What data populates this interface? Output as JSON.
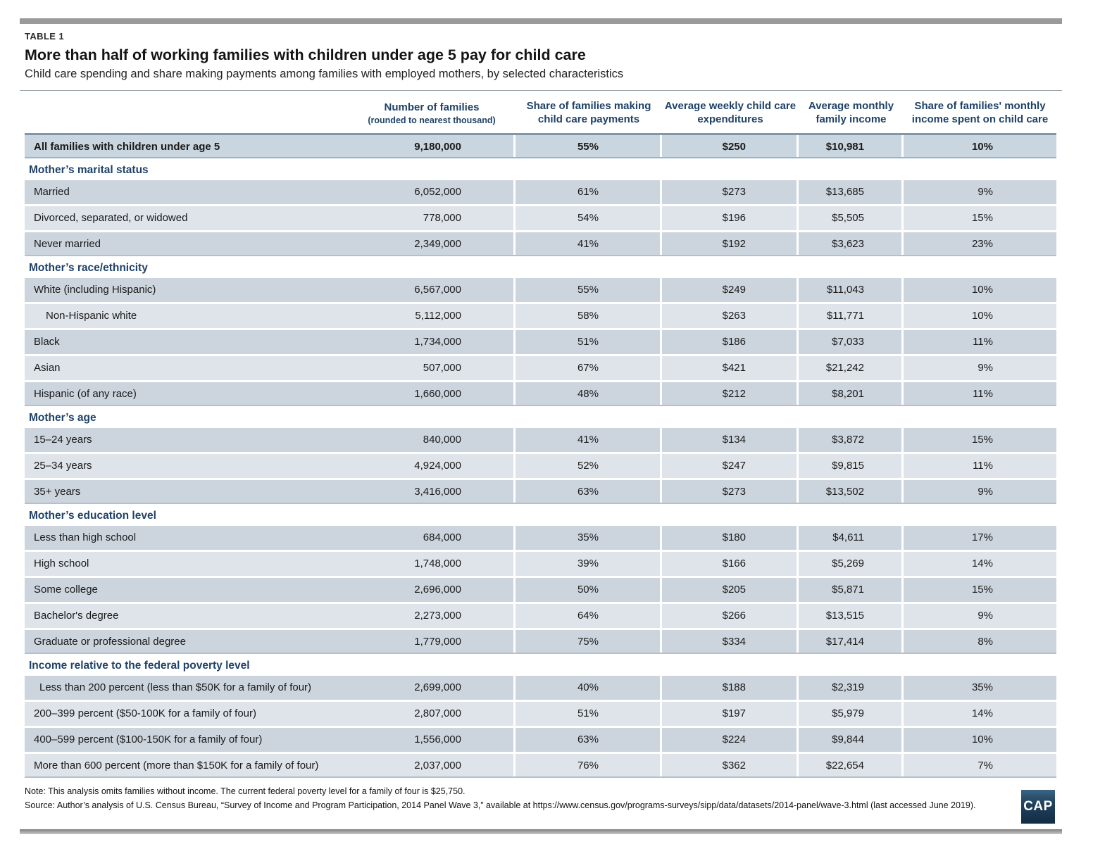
{
  "page": {
    "table_label": "TABLE 1",
    "title": "More than half of working families with children under age 5 pay for child care",
    "subtitle": "Child care spending and share making payments among families with employed mothers, by selected characteristics",
    "note": "Note: This analysis omits families without income. The current federal poverty level for a family of four is $25,750.",
    "source": "Source: Author’s analysis of U.S. Census Bureau, “Survey of Income and Program Participation, 2014 Panel Wave 3,” available at https://www.census.gov/programs-surveys/sipp/data/datasets/2014-panel/wave-3.html (last accessed June 2019).",
    "logo_text": "CAP"
  },
  "colors": {
    "navy": "#1f4267",
    "row_dark": "#ccd5de",
    "row_light": "#dee4ea",
    "all_row_bg": "#c9d5df",
    "section_border": "#b5c0ca",
    "bar_gray": "#9a9a9a"
  },
  "table": {
    "columns": [
      {
        "label": "Number of families",
        "subline": "(rounded to nearest thousand)"
      },
      {
        "label": "Share of families making child care payments"
      },
      {
        "label": "Average weekly child care expenditures"
      },
      {
        "label": "Average monthly family income"
      },
      {
        "label": "Share of families' monthly income spent on child care"
      }
    ],
    "all_row": {
      "label": "All families with children under age 5",
      "values": [
        "9,180,000",
        "55%",
        "$250",
        "$10,981",
        "10%"
      ]
    },
    "sections": [
      {
        "header": "Mother’s marital status",
        "rows": [
          {
            "label": "Married",
            "values": [
              "6,052,000",
              "61%",
              "$273",
              "$13,685",
              "9%"
            ]
          },
          {
            "label": "Divorced, separated, or widowed",
            "values": [
              "778,000",
              "54%",
              "$196",
              "$5,505",
              "15%"
            ]
          },
          {
            "label": "Never married",
            "values": [
              "2,349,000",
              "41%",
              "$192",
              "$3,623",
              "23%"
            ]
          }
        ]
      },
      {
        "header": "Mother’s race/ethnicity",
        "rows": [
          {
            "label": "White (including Hispanic)",
            "values": [
              "6,567,000",
              "55%",
              "$249",
              "$11,043",
              "10%"
            ]
          },
          {
            "label": "Non-Hispanic white",
            "indent": 2,
            "values": [
              "5,112,000",
              "58%",
              "$263",
              "$11,771",
              "10%"
            ]
          },
          {
            "label": "Black",
            "values": [
              "1,734,000",
              "51%",
              "$186",
              "$7,033",
              "11%"
            ]
          },
          {
            "label": "Asian",
            "values": [
              "507,000",
              "67%",
              "$421",
              "$21,242",
              "9%"
            ]
          },
          {
            "label": "Hispanic (of any race)",
            "values": [
              "1,660,000",
              "48%",
              "$212",
              "$8,201",
              "11%"
            ]
          }
        ]
      },
      {
        "header": "Mother’s age",
        "rows": [
          {
            "label": "15–24 years",
            "values": [
              "840,000",
              "41%",
              "$134",
              "$3,872",
              "15%"
            ]
          },
          {
            "label": "25–34 years",
            "values": [
              "4,924,000",
              "52%",
              "$247",
              "$9,815",
              "11%"
            ]
          },
          {
            "label": "35+ years",
            "values": [
              "3,416,000",
              "63%",
              "$273",
              "$13,502",
              "9%"
            ]
          }
        ]
      },
      {
        "header": "Mother’s education level",
        "rows": [
          {
            "label": "Less than high school",
            "values": [
              "684,000",
              "35%",
              "$180",
              "$4,611",
              "17%"
            ]
          },
          {
            "label": "High school",
            "values": [
              "1,748,000",
              "39%",
              "$166",
              "$5,269",
              "14%"
            ]
          },
          {
            "label": "Some college",
            "values": [
              "2,696,000",
              "50%",
              "$205",
              "$5,871",
              "15%"
            ]
          },
          {
            "label": "Bachelor's degree",
            "values": [
              "2,273,000",
              "64%",
              "$266",
              "$13,515",
              "9%"
            ]
          },
          {
            "label": "Graduate or professional degree",
            "values": [
              "1,779,000",
              "75%",
              "$334",
              "$17,414",
              "8%"
            ]
          }
        ]
      },
      {
        "header": "Income relative to the federal poverty level",
        "rows": [
          {
            "label": "Less than 200 percent (less than $50K for a family of four)",
            "indent": 1,
            "values": [
              "2,699,000",
              "40%",
              "$188",
              "$2,319",
              "35%"
            ]
          },
          {
            "label": "200–399 percent ($50-100K for a family of four)",
            "values": [
              "2,807,000",
              "51%",
              "$197",
              "$5,979",
              "14%"
            ]
          },
          {
            "label": "400–599 percent ($100-150K for a family of four)",
            "values": [
              "1,556,000",
              "63%",
              "$224",
              "$9,844",
              "10%"
            ]
          },
          {
            "label": "More than 600 percent (more than $150K for a family of four)",
            "values": [
              "2,037,000",
              "76%",
              "$362",
              "$22,654",
              "7%"
            ]
          }
        ]
      }
    ]
  }
}
